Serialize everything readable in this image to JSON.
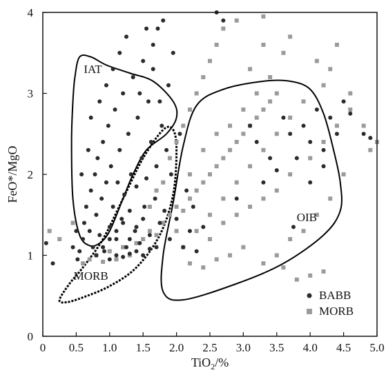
{
  "chart_data": {
    "type": "scatter",
    "xlabel": "TiO",
    "xlabel_subscript": "2",
    "xlabel_suffix": "/%",
    "ylabel": "FeO*/MgO",
    "xlim": [
      0,
      5.0
    ],
    "ylim": [
      0,
      4
    ],
    "x_ticks": [
      {
        "value": 0,
        "label": "0"
      },
      {
        "value": 0.5,
        "label": "0.5"
      },
      {
        "value": 1.0,
        "label": "1.0"
      },
      {
        "value": 1.5,
        "label": "1.5"
      },
      {
        "value": 2.0,
        "label": "2.0"
      },
      {
        "value": 2.5,
        "label": "2.5"
      },
      {
        "value": 3.0,
        "label": "3.0"
      },
      {
        "value": 3.5,
        "label": "3.5"
      },
      {
        "value": 4.0,
        "label": "4.0"
      },
      {
        "value": 4.5,
        "label": "4.5"
      },
      {
        "value": 5.0,
        "label": "5.0"
      }
    ],
    "y_ticks": [
      {
        "value": 0,
        "label": "0"
      },
      {
        "value": 1,
        "label": "1"
      },
      {
        "value": 2,
        "label": "2"
      },
      {
        "value": 3,
        "label": "3"
      },
      {
        "value": 4,
        "label": "4"
      }
    ],
    "legend": {
      "placement": "bottom-right",
      "entries": [
        {
          "name": "BABB",
          "marker": "circle",
          "color": "#2b2b2b"
        },
        {
          "name": "MORB",
          "marker": "square",
          "color": "#9b9b9b"
        }
      ]
    },
    "series": [
      {
        "name": "BABB",
        "marker": "circle",
        "color": "#2b2b2b",
        "points": [
          [
            0.52,
            0.95
          ],
          [
            0.55,
            1.05
          ],
          [
            0.6,
            1.2
          ],
          [
            0.62,
            1.4
          ],
          [
            0.65,
            1.6
          ],
          [
            0.7,
            1.3
          ],
          [
            0.72,
            1.8
          ],
          [
            0.75,
            1.1
          ],
          [
            0.78,
            2.0
          ],
          [
            0.8,
            1.5
          ],
          [
            0.82,
            2.2
          ],
          [
            0.85,
            1.25
          ],
          [
            0.88,
            1.7
          ],
          [
            0.9,
            2.4
          ],
          [
            0.92,
            1.05
          ],
          [
            0.95,
            1.9
          ],
          [
            0.98,
            2.6
          ],
          [
            1.0,
            1.35
          ],
          [
            1.02,
            2.1
          ],
          [
            1.05,
            1.6
          ],
          [
            1.08,
            2.8
          ],
          [
            1.1,
            1.2
          ],
          [
            1.12,
            1.9
          ],
          [
            1.15,
            2.3
          ],
          [
            1.18,
            1.45
          ],
          [
            1.2,
            3.0
          ],
          [
            1.22,
            1.75
          ],
          [
            1.25,
            1.1
          ],
          [
            1.28,
            2.5
          ],
          [
            1.3,
            1.55
          ],
          [
            1.32,
            2.0
          ],
          [
            1.35,
            3.2
          ],
          [
            1.38,
            1.3
          ],
          [
            1.4,
            1.85
          ],
          [
            1.42,
            2.7
          ],
          [
            1.45,
            1.15
          ],
          [
            1.48,
            2.2
          ],
          [
            1.5,
            3.4
          ],
          [
            1.52,
            1.6
          ],
          [
            1.55,
            1.95
          ],
          [
            1.58,
            2.9
          ],
          [
            1.6,
            1.25
          ],
          [
            1.62,
            2.4
          ],
          [
            1.65,
            3.6
          ],
          [
            1.68,
            1.7
          ],
          [
            1.7,
            2.1
          ],
          [
            1.72,
            3.8
          ],
          [
            1.75,
            1.4
          ],
          [
            1.78,
            2.6
          ],
          [
            1.8,
            3.9
          ],
          [
            1.82,
            1.55
          ],
          [
            1.85,
            2.3
          ],
          [
            1.88,
            3.1
          ],
          [
            1.9,
            1.2
          ],
          [
            1.92,
            2.0
          ],
          [
            1.95,
            3.5
          ],
          [
            2.0,
            1.45
          ],
          [
            2.05,
            2.5
          ],
          [
            2.1,
            1.1
          ],
          [
            2.15,
            1.8
          ],
          [
            2.2,
            1.3
          ],
          [
            2.25,
            1.6
          ],
          [
            2.3,
            1.05
          ],
          [
            2.4,
            1.35
          ],
          [
            0.45,
            1.1
          ],
          [
            0.5,
            1.3
          ],
          [
            0.58,
            2.0
          ],
          [
            0.68,
            2.3
          ],
          [
            0.72,
            2.7
          ],
          [
            0.85,
            2.9
          ],
          [
            0.95,
            3.1
          ],
          [
            1.05,
            3.3
          ],
          [
            1.15,
            3.5
          ],
          [
            1.25,
            3.7
          ],
          [
            1.45,
            3.0
          ],
          [
            1.55,
            3.8
          ],
          [
            1.65,
            3.3
          ],
          [
            1.75,
            2.9
          ],
          [
            2.6,
            4.0
          ],
          [
            2.7,
            3.9
          ],
          [
            1.0,
            0.95
          ],
          [
            1.1,
            1.0
          ],
          [
            1.2,
            0.98
          ],
          [
            1.3,
            1.02
          ],
          [
            1.4,
            1.05
          ],
          [
            1.5,
            1.0
          ],
          [
            1.6,
            1.08
          ],
          [
            1.7,
            1.1
          ],
          [
            0.8,
            1.0
          ],
          [
            0.9,
            1.1
          ],
          [
            1.0,
            1.2
          ],
          [
            1.1,
            1.3
          ],
          [
            1.2,
            1.4
          ],
          [
            1.3,
            1.2
          ],
          [
            1.4,
            1.35
          ],
          [
            1.5,
            1.45
          ],
          [
            3.6,
            2.7
          ],
          [
            3.7,
            2.5
          ],
          [
            3.8,
            2.2
          ],
          [
            3.9,
            2.6
          ],
          [
            4.0,
            2.4
          ],
          [
            4.1,
            2.8
          ],
          [
            4.2,
            2.3
          ],
          [
            4.3,
            2.7
          ],
          [
            4.4,
            2.5
          ],
          [
            4.5,
            2.9
          ],
          [
            4.6,
            2.75
          ],
          [
            4.9,
            2.45
          ],
          [
            4.8,
            2.5
          ],
          [
            3.75,
            1.35
          ],
          [
            4.0,
            1.9
          ],
          [
            4.2,
            2.1
          ],
          [
            3.4,
            2.2
          ],
          [
            3.5,
            2.05
          ],
          [
            3.3,
            1.9
          ],
          [
            2.9,
            1.7
          ],
          [
            3.1,
            2.6
          ],
          [
            3.2,
            2.4
          ],
          [
            0.05,
            1.15
          ],
          [
            0.15,
            0.9
          ]
        ]
      },
      {
        "name": "MORB",
        "marker": "square",
        "color": "#9b9b9b",
        "points": [
          [
            0.6,
            0.9
          ],
          [
            0.7,
            0.95
          ],
          [
            0.8,
            1.0
          ],
          [
            0.9,
            0.92
          ],
          [
            1.0,
            1.05
          ],
          [
            1.1,
            0.95
          ],
          [
            1.2,
            1.1
          ],
          [
            1.3,
            1.0
          ],
          [
            1.4,
            1.15
          ],
          [
            1.5,
            1.2
          ],
          [
            1.6,
            1.3
          ],
          [
            1.7,
            1.25
          ],
          [
            1.8,
            1.4
          ],
          [
            1.9,
            1.5
          ],
          [
            2.0,
            1.6
          ],
          [
            2.1,
            1.55
          ],
          [
            2.2,
            1.7
          ],
          [
            2.3,
            1.8
          ],
          [
            2.4,
            1.9
          ],
          [
            2.5,
            2.0
          ],
          [
            2.6,
            2.1
          ],
          [
            2.7,
            2.2
          ],
          [
            2.8,
            2.3
          ],
          [
            2.9,
            2.4
          ],
          [
            3.0,
            2.5
          ],
          [
            3.1,
            2.6
          ],
          [
            3.2,
            2.7
          ],
          [
            3.3,
            2.8
          ],
          [
            3.4,
            2.9
          ],
          [
            3.5,
            3.0
          ],
          [
            2.2,
            2.0
          ],
          [
            2.4,
            2.3
          ],
          [
            2.6,
            2.5
          ],
          [
            2.8,
            2.6
          ],
          [
            3.0,
            2.8
          ],
          [
            3.2,
            3.0
          ],
          [
            3.4,
            3.2
          ],
          [
            3.6,
            3.5
          ],
          [
            3.3,
            3.6
          ],
          [
            3.1,
            3.3
          ],
          [
            2.5,
            1.5
          ],
          [
            2.7,
            1.7
          ],
          [
            2.9,
            1.9
          ],
          [
            3.1,
            2.1
          ],
          [
            3.3,
            2.3
          ],
          [
            3.5,
            2.5
          ],
          [
            3.7,
            2.7
          ],
          [
            3.9,
            2.9
          ],
          [
            2.3,
            1.3
          ],
          [
            2.5,
            1.2
          ],
          [
            2.7,
            1.4
          ],
          [
            2.9,
            1.5
          ],
          [
            3.1,
            1.6
          ],
          [
            3.3,
            1.7
          ],
          [
            3.5,
            1.8
          ],
          [
            3.7,
            2.0
          ],
          [
            4.0,
            2.2
          ],
          [
            4.2,
            2.4
          ],
          [
            4.4,
            2.6
          ],
          [
            4.6,
            2.8
          ],
          [
            4.8,
            2.6
          ],
          [
            5.0,
            2.4
          ],
          [
            4.5,
            2.0
          ],
          [
            4.3,
            1.7
          ],
          [
            4.1,
            1.5
          ],
          [
            3.9,
            1.3
          ],
          [
            3.7,
            1.2
          ],
          [
            3.5,
            1.0
          ],
          [
            3.3,
            0.9
          ],
          [
            3.0,
            1.1
          ],
          [
            2.8,
            1.0
          ],
          [
            2.6,
            0.95
          ],
          [
            2.0,
            2.4
          ],
          [
            2.1,
            2.6
          ],
          [
            2.2,
            2.8
          ],
          [
            2.3,
            3.0
          ],
          [
            2.4,
            3.2
          ],
          [
            2.5,
            3.4
          ],
          [
            2.6,
            3.6
          ],
          [
            2.7,
            3.8
          ],
          [
            2.9,
            3.9
          ],
          [
            3.3,
            3.95
          ],
          [
            3.7,
            3.7
          ],
          [
            4.1,
            3.4
          ],
          [
            4.2,
            3.1
          ],
          [
            4.3,
            3.3
          ],
          [
            4.4,
            3.6
          ],
          [
            4.6,
            3.0
          ],
          [
            0.1,
            1.3
          ],
          [
            0.25,
            1.2
          ],
          [
            0.45,
            1.4
          ],
          [
            4.9,
            2.3
          ],
          [
            4.2,
            0.8
          ],
          [
            4.0,
            0.75
          ],
          [
            3.8,
            0.7
          ],
          [
            3.6,
            0.85
          ],
          [
            1.9,
            2.2
          ],
          [
            1.8,
            1.9
          ],
          [
            1.7,
            1.8
          ],
          [
            1.6,
            1.6
          ],
          [
            2.0,
            1.3
          ],
          [
            2.1,
            1.1
          ],
          [
            2.2,
            0.9
          ],
          [
            2.4,
            0.85
          ]
        ]
      }
    ],
    "annotations": [
      {
        "text": "IAT",
        "x": 0.75,
        "y": 3.25
      },
      {
        "text": "MORB",
        "x": 0.72,
        "y": 0.7
      },
      {
        "text": "OIB",
        "x": 3.95,
        "y": 1.42
      }
    ],
    "regions": [
      {
        "name": "IAT",
        "style": "solid",
        "points": [
          [
            0.48,
            3.2
          ],
          [
            0.55,
            3.45
          ],
          [
            0.72,
            3.45
          ],
          [
            0.95,
            3.35
          ],
          [
            1.3,
            3.25
          ],
          [
            1.65,
            3.15
          ],
          [
            1.95,
            2.9
          ],
          [
            2.0,
            2.7
          ],
          [
            1.85,
            2.5
          ],
          [
            1.55,
            2.3
          ],
          [
            1.35,
            2.0
          ],
          [
            1.2,
            1.7
          ],
          [
            1.0,
            1.3
          ],
          [
            0.85,
            1.15
          ],
          [
            0.7,
            1.12
          ],
          [
            0.55,
            1.25
          ],
          [
            0.45,
            1.7
          ],
          [
            0.43,
            2.4
          ],
          [
            0.45,
            2.9
          ]
        ]
      },
      {
        "name": "MORB",
        "style": "dashed",
        "points": [
          [
            0.25,
            0.45
          ],
          [
            0.35,
            0.42
          ],
          [
            0.6,
            0.48
          ],
          [
            1.0,
            0.62
          ],
          [
            1.4,
            0.85
          ],
          [
            1.75,
            1.25
          ],
          [
            1.95,
            1.75
          ],
          [
            2.0,
            2.3
          ],
          [
            1.95,
            2.55
          ],
          [
            1.8,
            2.55
          ],
          [
            1.5,
            2.2
          ],
          [
            1.2,
            1.7
          ],
          [
            0.9,
            1.2
          ],
          [
            0.6,
            0.85
          ],
          [
            0.4,
            0.65
          ]
        ]
      },
      {
        "name": "OIB",
        "style": "solid",
        "points": [
          [
            1.8,
            0.55
          ],
          [
            1.8,
            1.0
          ],
          [
            1.95,
            1.65
          ],
          [
            2.1,
            2.35
          ],
          [
            2.3,
            2.85
          ],
          [
            2.7,
            3.05
          ],
          [
            3.3,
            3.15
          ],
          [
            3.7,
            3.15
          ],
          [
            4.0,
            3.05
          ],
          [
            4.2,
            2.75
          ],
          [
            4.35,
            2.3
          ],
          [
            4.45,
            1.9
          ],
          [
            4.45,
            1.55
          ],
          [
            4.2,
            1.25
          ],
          [
            3.6,
            0.9
          ],
          [
            2.9,
            0.65
          ],
          [
            2.1,
            0.45
          ]
        ]
      }
    ]
  }
}
